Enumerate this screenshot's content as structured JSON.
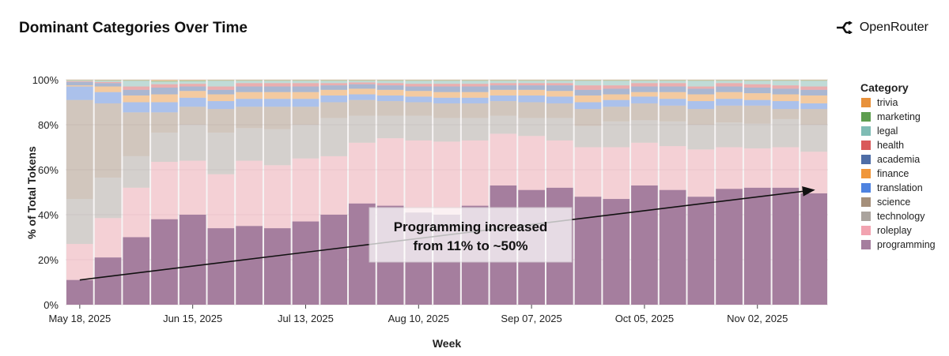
{
  "header": {
    "title": "Dominant Categories Over Time",
    "logo_text": "OpenRouter",
    "logo_icon": "openrouter-arrows-icon"
  },
  "chart_data": {
    "type": "bar",
    "stacked": true,
    "title": "",
    "xlabel": "Week",
    "ylabel": "% of Total Tokens",
    "ylim": [
      0,
      100
    ],
    "y_ticks": [
      "0%",
      "20%",
      "40%",
      "60%",
      "80%",
      "100%"
    ],
    "x_ticks": [
      "May 18, 2025",
      "Jun 15, 2025",
      "Jul 13, 2025",
      "Aug 10, 2025",
      "Sep 07, 2025",
      "Oct 05, 2025",
      "Nov 02, 2025"
    ],
    "grid": true,
    "legend": {
      "title": "Category",
      "placement": "right"
    },
    "categories": [
      "May 18, 2025",
      "May 25, 2025",
      "Jun 01, 2025",
      "Jun 08, 2025",
      "Jun 15, 2025",
      "Jun 22, 2025",
      "Jun 29, 2025",
      "Jul 06, 2025",
      "Jul 13, 2025",
      "Jul 20, 2025",
      "Jul 27, 2025",
      "Aug 03, 2025",
      "Aug 10, 2025",
      "Aug 17, 2025",
      "Aug 24, 2025",
      "Aug 31, 2025",
      "Sep 07, 2025",
      "Sep 14, 2025",
      "Sep 21, 2025",
      "Sep 28, 2025",
      "Oct 05, 2025",
      "Oct 12, 2025",
      "Oct 19, 2025",
      "Oct 26, 2025",
      "Nov 02, 2025",
      "Nov 09, 2025",
      "Nov 16, 2025"
    ],
    "series": [
      {
        "name": "programming",
        "color": "#a57e9e",
        "values": [
          11,
          21,
          30,
          38,
          40,
          34,
          35,
          34,
          37,
          40,
          45,
          44,
          41,
          40,
          44,
          53,
          51,
          52,
          48,
          47,
          53,
          51,
          48,
          51.5,
          52,
          52,
          49.5
        ]
      },
      {
        "name": "roleplay",
        "color": "#f2a3b0",
        "values": [
          16,
          17.5,
          22,
          25.5,
          24,
          24,
          29,
          28,
          28,
          26,
          27,
          30,
          32,
          32.5,
          29,
          23,
          24,
          21,
          22,
          23,
          19,
          19.5,
          21,
          18.5,
          17.5,
          18,
          18.5
        ]
      },
      {
        "name": "technology",
        "color": "#aaa39d",
        "values": [
          20,
          18,
          14,
          13,
          16,
          18.5,
          14.5,
          16,
          15,
          17,
          12,
          10,
          11,
          10.5,
          10,
          8,
          8,
          10,
          9.5,
          11.5,
          10,
          11,
          11,
          11,
          11,
          12.5,
          12
        ]
      },
      {
        "name": "science",
        "color": "#a58f7a",
        "values": [
          44,
          33,
          19.5,
          9,
          8,
          10.5,
          9.5,
          10,
          8,
          7,
          7,
          6.5,
          6,
          6.5,
          6.5,
          6.5,
          7,
          6.5,
          7.5,
          6.5,
          7.5,
          7,
          7,
          7.5,
          8,
          4.5,
          7
        ]
      },
      {
        "name": "translation",
        "color": "#4f83e0",
        "values": [
          6,
          5,
          4.5,
          4.5,
          4,
          3.5,
          3.5,
          3.5,
          3.5,
          3,
          2.5,
          2.5,
          2.5,
          2.5,
          2.5,
          2.5,
          3,
          3,
          3,
          3,
          3,
          3,
          3.5,
          3,
          2.5,
          3.5,
          2.5
        ]
      },
      {
        "name": "finance",
        "color": "#f0963a",
        "values": [
          0.5,
          2.5,
          3,
          3.5,
          3,
          3,
          3,
          3,
          3,
          2.5,
          2.5,
          2.5,
          2.5,
          2.5,
          2.5,
          2.5,
          2.5,
          2.5,
          3,
          2.5,
          2,
          3,
          3,
          3,
          3,
          3,
          3.5
        ]
      },
      {
        "name": "academia",
        "color": "#4e6da6",
        "values": [
          1.5,
          1.5,
          2.5,
          3,
          2,
          2,
          2.5,
          2.5,
          2.5,
          2,
          2,
          2,
          2,
          2.5,
          2.5,
          2,
          2,
          2.5,
          2.5,
          2.5,
          2.5,
          2.5,
          2.5,
          2.5,
          2.5,
          2.5,
          2.5
        ]
      },
      {
        "name": "health",
        "color": "#d9595a",
        "values": [
          0.3,
          0.5,
          1.5,
          1.5,
          1.2,
          1.5,
          1.5,
          1.5,
          1.5,
          1,
          0.8,
          1,
          1.2,
          1.2,
          1.2,
          1,
          1,
          1,
          2,
          1.5,
          1.5,
          1.5,
          1,
          1.5,
          1.5,
          1.5,
          1.5
        ]
      },
      {
        "name": "legal",
        "color": "#7fbcb4",
        "values": [
          0.3,
          0.5,
          2.5,
          1,
          1,
          2.5,
          1,
          1,
          1,
          1,
          0.7,
          1,
          1.3,
          1.3,
          1.3,
          1,
          1,
          1,
          2,
          2,
          1,
          1,
          2.5,
          1,
          1.5,
          2,
          2.5
        ]
      },
      {
        "name": "marketing",
        "color": "#5e9e4f",
        "values": [
          0.2,
          0.3,
          0.3,
          0.5,
          0.5,
          0.3,
          0.3,
          0.3,
          0.3,
          0.3,
          0.3,
          0.3,
          0.3,
          0.3,
          0.3,
          0.3,
          0.3,
          0.3,
          0.3,
          0.3,
          0.3,
          0.3,
          0.3,
          0.3,
          0.3,
          0.3,
          0.3
        ]
      },
      {
        "name": "trivia",
        "color": "#e8913a",
        "values": [
          0.2,
          0.2,
          0.2,
          0.5,
          0.3,
          0.2,
          0.2,
          0.2,
          0.2,
          0.2,
          0.2,
          0.2,
          0.2,
          0.2,
          0.2,
          0.2,
          0.2,
          0.2,
          0.2,
          0.2,
          0.2,
          0.2,
          0.2,
          0.2,
          0.2,
          0.2,
          0.2
        ]
      }
    ],
    "legend_order": [
      "trivia",
      "marketing",
      "legal",
      "health",
      "academia",
      "finance",
      "translation",
      "science",
      "technology",
      "roleplay",
      "programming"
    ],
    "annotation": {
      "lines": [
        "Programming increased",
        "from 11% to ~50%"
      ],
      "arrow_from": {
        "x": "May 18, 2025",
        "y": 11
      },
      "arrow_to": {
        "x": "Nov 16, 2025",
        "y": 51
      }
    }
  }
}
